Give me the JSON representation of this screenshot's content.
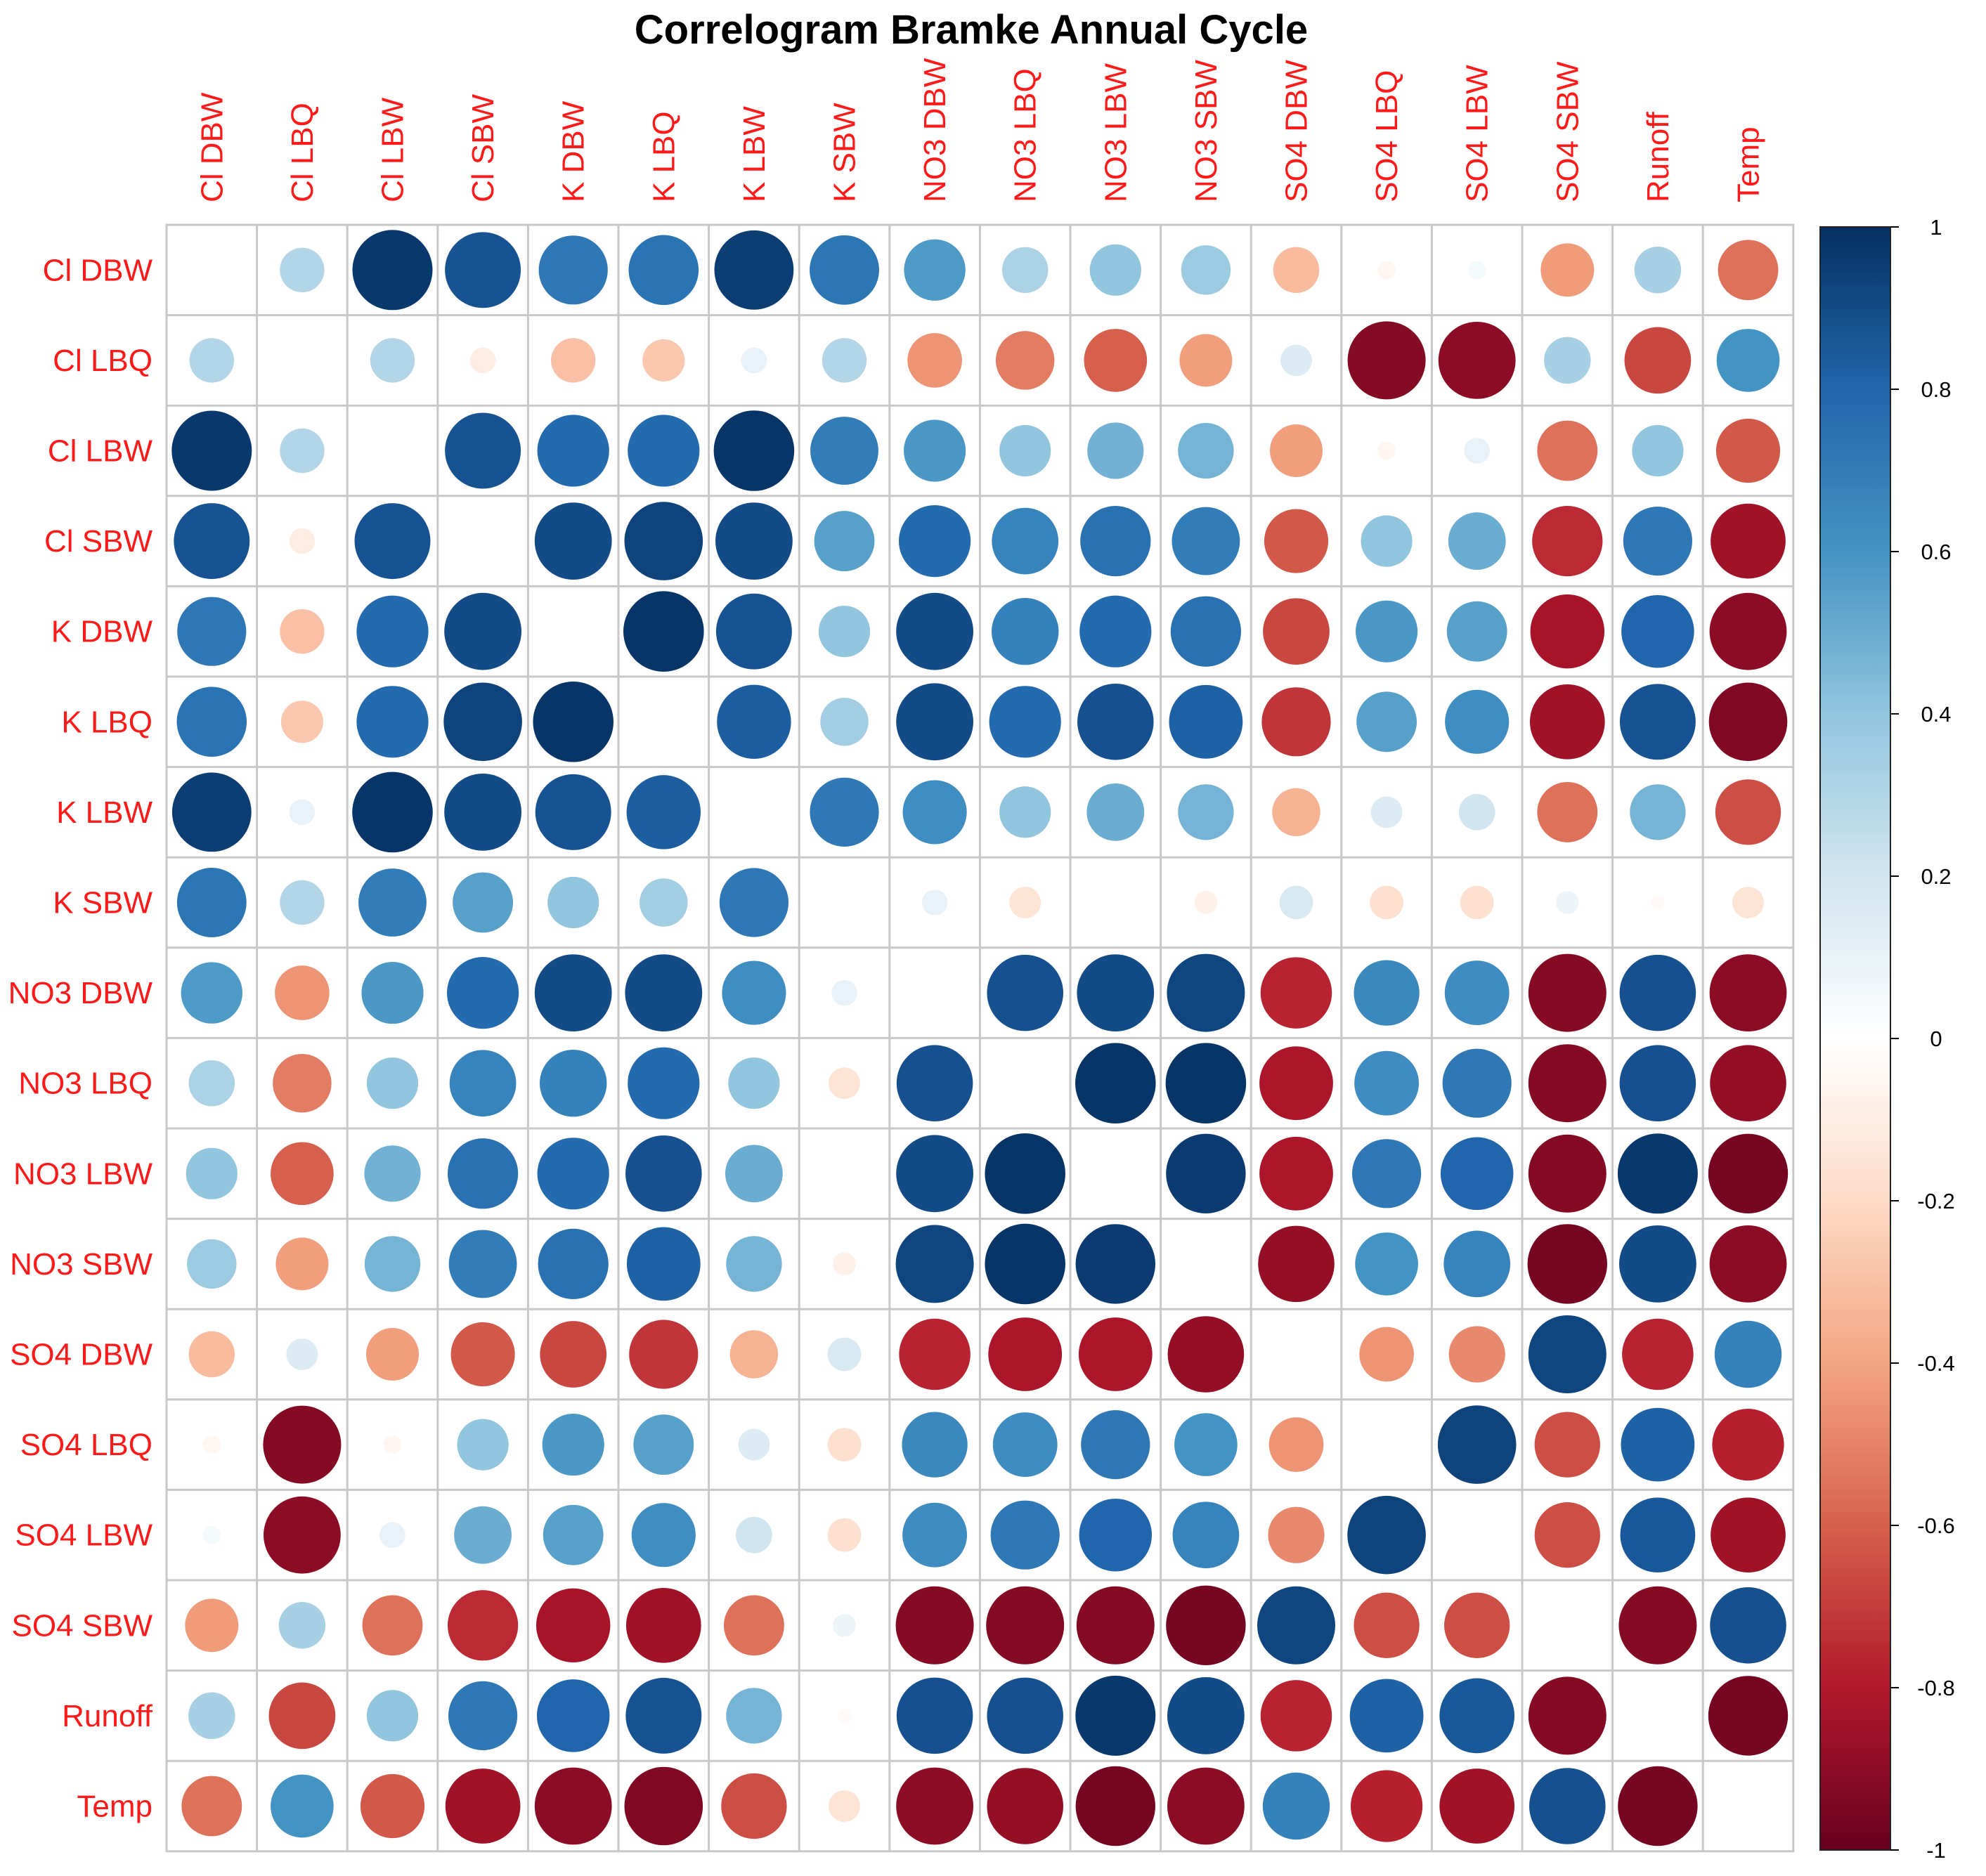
{
  "chart_data": {
    "type": "heatmap",
    "title": "Correlogram Bramke Annual Cycle",
    "variables": [
      "Cl DBW",
      "Cl LBQ",
      "Cl LBW",
      "Cl SBW",
      "K DBW",
      "K LBQ",
      "K LBW",
      "K SBW",
      "NO3 DBW",
      "NO3 LBQ",
      "NO3 LBW",
      "NO3 SBW",
      "SO4 DBW",
      "SO4 LBQ",
      "SO4 LBW",
      "SO4 SBW",
      "Runoff",
      "Temp"
    ],
    "matrix": [
      [
        null,
        0.3,
        0.97,
        0.87,
        0.72,
        0.74,
        0.95,
        0.73,
        0.57,
        0.32,
        0.4,
        0.37,
        -0.32,
        -0.05,
        0.05,
        -0.43,
        0.33,
        -0.55
      ],
      [
        0.3,
        null,
        0.3,
        -0.1,
        -0.3,
        -0.27,
        0.1,
        0.3,
        -0.45,
        -0.52,
        -0.6,
        -0.42,
        0.15,
        -0.92,
        -0.9,
        0.33,
        -0.67,
        0.6
      ],
      [
        0.97,
        0.3,
        null,
        0.87,
        0.78,
        0.78,
        0.98,
        0.7,
        0.58,
        0.4,
        0.48,
        0.47,
        -0.42,
        -0.05,
        0.1,
        -0.55,
        0.4,
        -0.62
      ],
      [
        0.87,
        -0.1,
        0.87,
        null,
        0.9,
        0.93,
        0.9,
        0.55,
        0.78,
        0.67,
        0.75,
        0.7,
        -0.62,
        0.4,
        0.5,
        -0.75,
        0.72,
        -0.85
      ],
      [
        0.72,
        -0.3,
        0.78,
        0.9,
        null,
        0.98,
        0.87,
        0.4,
        0.9,
        0.68,
        0.78,
        0.75,
        -0.67,
        0.58,
        0.55,
        -0.83,
        0.8,
        -0.9
      ],
      [
        0.74,
        -0.27,
        0.78,
        0.93,
        0.98,
        null,
        0.83,
        0.35,
        0.9,
        0.78,
        0.88,
        0.82,
        -0.72,
        0.55,
        0.62,
        -0.85,
        0.87,
        -0.93
      ],
      [
        0.95,
        0.1,
        0.98,
        0.9,
        0.87,
        0.83,
        null,
        0.72,
        0.62,
        0.4,
        0.5,
        0.47,
        -0.35,
        0.15,
        0.2,
        -0.55,
        0.47,
        -0.65
      ],
      [
        0.73,
        0.3,
        0.7,
        0.55,
        0.4,
        0.35,
        0.72,
        null,
        0.1,
        -0.15,
        0.0,
        -0.08,
        0.17,
        -0.17,
        -0.17,
        0.08,
        -0.03,
        -0.15
      ],
      [
        0.57,
        -0.45,
        0.58,
        0.78,
        0.9,
        0.9,
        0.62,
        0.1,
        null,
        0.88,
        0.9,
        0.92,
        -0.77,
        0.65,
        0.63,
        -0.92,
        0.88,
        -0.9
      ],
      [
        0.32,
        -0.52,
        0.4,
        0.67,
        0.68,
        0.78,
        0.4,
        -0.15,
        0.88,
        null,
        0.98,
        0.98,
        -0.82,
        0.63,
        0.72,
        -0.92,
        0.88,
        -0.88
      ],
      [
        0.4,
        -0.6,
        0.48,
        0.75,
        0.78,
        0.88,
        0.5,
        0.0,
        0.9,
        0.98,
        null,
        0.96,
        -0.82,
        0.72,
        0.8,
        -0.92,
        0.97,
        -0.96
      ],
      [
        0.37,
        -0.42,
        0.47,
        0.7,
        0.75,
        0.82,
        0.47,
        -0.08,
        0.92,
        0.98,
        0.96,
        null,
        -0.88,
        0.6,
        0.67,
        -0.96,
        0.9,
        -0.9
      ],
      [
        -0.32,
        0.15,
        -0.42,
        -0.62,
        -0.67,
        -0.72,
        -0.35,
        0.17,
        -0.77,
        -0.82,
        -0.82,
        -0.88,
        null,
        -0.45,
        -0.48,
        0.92,
        -0.77,
        0.68
      ],
      [
        -0.05,
        -0.92,
        -0.05,
        0.4,
        0.58,
        0.55,
        0.15,
        -0.17,
        0.65,
        0.63,
        0.72,
        0.6,
        -0.45,
        null,
        0.93,
        -0.65,
        0.82,
        -0.78
      ],
      [
        0.05,
        -0.9,
        0.1,
        0.5,
        0.55,
        0.62,
        0.2,
        -0.17,
        0.63,
        0.72,
        0.8,
        0.67,
        -0.48,
        0.93,
        null,
        -0.65,
        0.85,
        -0.85
      ],
      [
        -0.43,
        0.33,
        -0.55,
        -0.75,
        -0.83,
        -0.85,
        -0.55,
        0.08,
        -0.92,
        -0.92,
        -0.92,
        -0.96,
        0.92,
        -0.65,
        -0.65,
        null,
        -0.92,
        0.88
      ],
      [
        0.33,
        -0.67,
        0.4,
        0.72,
        0.8,
        0.87,
        0.47,
        -0.03,
        0.88,
        0.88,
        0.97,
        0.9,
        -0.77,
        0.82,
        0.85,
        -0.92,
        null,
        -0.96
      ],
      [
        -0.55,
        0.6,
        -0.62,
        -0.85,
        -0.9,
        -0.93,
        -0.65,
        -0.15,
        -0.9,
        -0.88,
        -0.96,
        -0.9,
        0.68,
        -0.78,
        -0.85,
        0.88,
        -0.96,
        null
      ]
    ],
    "colorbar": {
      "ticks": [
        "1",
        "0.8",
        "0.6",
        "0.4",
        "0.2",
        "0",
        "-0.2",
        "-0.4",
        "-0.6",
        "-0.8",
        "-1"
      ],
      "range": [
        -1,
        1
      ]
    },
    "label_color": "#ff1a1a",
    "colormap": [
      "#67001F",
      "#B2182B",
      "#D6604D",
      "#F4A582",
      "#FDDBC7",
      "#FFFFFF",
      "#D1E5F0",
      "#92C5DE",
      "#4393C3",
      "#2166AC",
      "#053061"
    ]
  }
}
